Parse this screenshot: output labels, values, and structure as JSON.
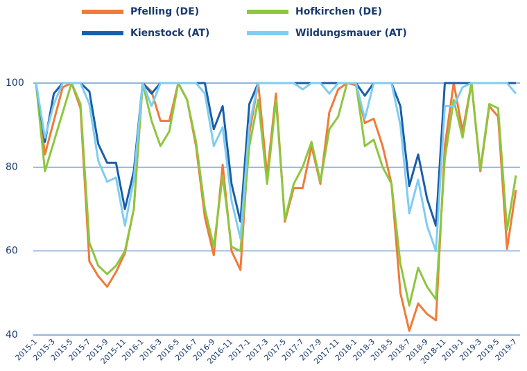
{
  "chart_data": {
    "type": "line",
    "categories": [
      "2015-1",
      null,
      "2015-3",
      null,
      "2015-5",
      null,
      "2015-7",
      null,
      "2015-9",
      null,
      "2015-11",
      null,
      "2016-1",
      null,
      "2016-3",
      null,
      "2016-5",
      null,
      "2016-7",
      null,
      "2016-9",
      null,
      "2016-11",
      null,
      "2017-1",
      null,
      "2017-3",
      null,
      "2017-5",
      null,
      "2017-7",
      null,
      "2017-9",
      null,
      "2017-11",
      null,
      "2018-1",
      null,
      "2018-3",
      null,
      "2018-5",
      null,
      "2018-7",
      null,
      "2018-9",
      null,
      "2018-11",
      null,
      "2019-1",
      null,
      "2019-3",
      null,
      "2019-5",
      null,
      "2019-7"
    ],
    "series": [
      {
        "name": "Pfelling (DE)",
        "color": "#f07a3a",
        "values": [
          100,
          83,
          91,
          99,
          100,
          94,
          57.5,
          54,
          51.5,
          55,
          59.5,
          70,
          100,
          98,
          91,
          91,
          100,
          96,
          85,
          68,
          59,
          80.5,
          60,
          55.5,
          88,
          100,
          78,
          97.5,
          67,
          75,
          75,
          85,
          76,
          93,
          98.5,
          100,
          99.5,
          90.5,
          91.5,
          85,
          76,
          50,
          41,
          47.5,
          45,
          43.5,
          85,
          100,
          88.5,
          100,
          79,
          94.5,
          92,
          60.5,
          74.5
        ]
      },
      {
        "name": "Hofkirchen (DE)",
        "color": "#8dc63f",
        "values": [
          100,
          79,
          86,
          93,
          100,
          95,
          62,
          56.5,
          54.5,
          56.5,
          60,
          70,
          100,
          91,
          85,
          88.5,
          100,
          96,
          86,
          70,
          61,
          78,
          61,
          60,
          85,
          96,
          76,
          96,
          67.5,
          76,
          80,
          86,
          76.5,
          89,
          92,
          100,
          100,
          85,
          86.5,
          80,
          76,
          57,
          47,
          56,
          51.5,
          48.5,
          82,
          96,
          87,
          100,
          79.5,
          95,
          94,
          65,
          78
        ]
      },
      {
        "name": "Kienstock (AT)",
        "color": "#1a5ea8",
        "values": [
          100,
          86,
          97.5,
          100,
          100,
          100,
          98,
          85.5,
          81,
          81,
          70,
          79,
          100,
          97.5,
          100,
          100,
          100,
          100,
          100,
          100,
          89,
          94.5,
          76,
          67,
          95,
          100,
          100,
          100,
          100,
          100,
          100,
          100,
          100,
          100,
          100,
          100,
          100,
          97,
          100,
          100,
          100,
          94.5,
          75.5,
          83,
          72.5,
          66,
          100,
          100,
          100,
          100,
          100,
          100,
          100,
          100,
          100
        ]
      },
      {
        "name": "Wildungsmauer (AT)",
        "color": "#7fcdf0",
        "values": [
          100,
          87,
          95,
          100,
          100,
          100,
          95,
          81.5,
          76.5,
          77.5,
          66,
          77,
          100,
          94.5,
          100,
          100,
          100,
          100,
          100,
          97.5,
          85,
          89.5,
          72,
          63,
          90,
          100,
          100,
          100,
          100,
          100,
          98.5,
          100,
          100,
          97.5,
          100,
          100,
          100,
          91.5,
          100,
          100,
          100,
          90,
          69,
          77,
          66,
          60,
          94.5,
          94.5,
          99,
          100,
          100,
          100,
          100,
          100,
          97.5
        ]
      }
    ],
    "ylim": [
      40,
      100
    ],
    "yticks": [
      40,
      60,
      80,
      100
    ],
    "grid": true,
    "legend": "top"
  }
}
